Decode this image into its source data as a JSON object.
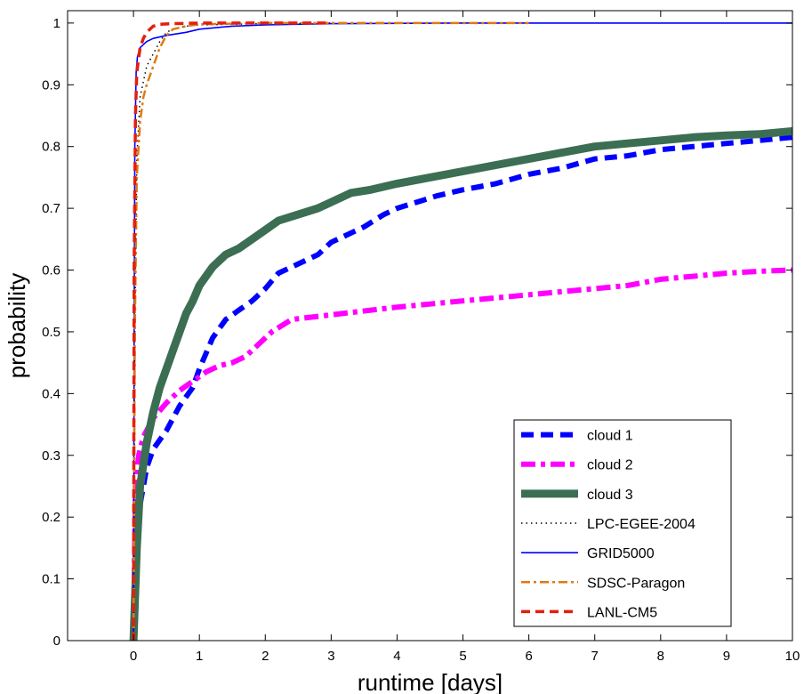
{
  "chart_data": {
    "type": "line",
    "xlabel": "runtime [days]",
    "ylabel": "probability",
    "xlim": [
      -1,
      10
    ],
    "ylim": [
      0,
      1.02
    ],
    "xticks": [
      0,
      1,
      2,
      3,
      4,
      5,
      6,
      7,
      8,
      9,
      10
    ],
    "yticks": [
      0,
      0.1,
      0.2,
      0.3,
      0.4,
      0.5,
      0.6,
      0.7,
      0.8,
      0.9,
      1
    ],
    "grid": false,
    "legend_position": "bottom-right",
    "series": [
      {
        "name": "cloud 1",
        "color": "#0000ff",
        "style": "dashed-thick",
        "x": [
          0,
          0.05,
          0.1,
          0.2,
          0.3,
          0.5,
          0.7,
          0.9,
          1.0,
          1.2,
          1.4,
          1.6,
          1.8,
          2.0,
          2.2,
          2.5,
          2.8,
          3.0,
          3.2,
          3.5,
          3.8,
          4.0,
          4.3,
          4.6,
          5.0,
          5.5,
          6.0,
          6.5,
          7.0,
          7.5,
          8.0,
          8.5,
          9.0,
          9.5,
          10.0
        ],
        "y": [
          0,
          0.15,
          0.22,
          0.28,
          0.31,
          0.34,
          0.38,
          0.41,
          0.44,
          0.49,
          0.52,
          0.535,
          0.55,
          0.57,
          0.595,
          0.61,
          0.625,
          0.645,
          0.655,
          0.67,
          0.69,
          0.7,
          0.71,
          0.72,
          0.73,
          0.74,
          0.755,
          0.765,
          0.78,
          0.785,
          0.795,
          0.8,
          0.805,
          0.81,
          0.815
        ]
      },
      {
        "name": "cloud 2",
        "color": "#ff00ff",
        "style": "dashdot-thick",
        "x": [
          0,
          0.03,
          0.08,
          0.15,
          0.3,
          0.5,
          0.7,
          0.9,
          1.1,
          1.3,
          1.5,
          1.7,
          1.9,
          2.1,
          2.4,
          2.8,
          3.2,
          3.6,
          4.0,
          4.5,
          5.0,
          5.5,
          6.0,
          6.5,
          7.0,
          7.5,
          8.0,
          8.5,
          9.0,
          9.5,
          10.0
        ],
        "y": [
          0,
          0.25,
          0.3,
          0.33,
          0.36,
          0.385,
          0.405,
          0.42,
          0.435,
          0.445,
          0.45,
          0.46,
          0.48,
          0.5,
          0.52,
          0.525,
          0.53,
          0.535,
          0.54,
          0.545,
          0.55,
          0.555,
          0.56,
          0.565,
          0.57,
          0.575,
          0.585,
          0.59,
          0.595,
          0.598,
          0.6
        ]
      },
      {
        "name": "cloud 3",
        "color": "#3b6e52",
        "style": "solid-thick",
        "x": [
          0,
          0.05,
          0.1,
          0.2,
          0.3,
          0.4,
          0.5,
          0.6,
          0.7,
          0.8,
          0.9,
          1.0,
          1.2,
          1.4,
          1.6,
          1.8,
          2.0,
          2.2,
          2.5,
          2.8,
          3.0,
          3.3,
          3.6,
          4.0,
          4.5,
          5.0,
          5.5,
          6.0,
          6.5,
          7.0,
          7.5,
          8.0,
          8.5,
          9.0,
          9.5,
          10.0
        ],
        "y": [
          0,
          0.15,
          0.25,
          0.32,
          0.37,
          0.41,
          0.44,
          0.47,
          0.5,
          0.53,
          0.55,
          0.575,
          0.605,
          0.625,
          0.635,
          0.65,
          0.665,
          0.68,
          0.69,
          0.7,
          0.71,
          0.725,
          0.73,
          0.74,
          0.75,
          0.76,
          0.77,
          0.78,
          0.79,
          0.8,
          0.805,
          0.81,
          0.815,
          0.818,
          0.82,
          0.825
        ]
      },
      {
        "name": "LPC-EGEE-2004",
        "color": "#000000",
        "style": "dotted",
        "x": [
          0,
          0.02,
          0.05,
          0.1,
          0.2,
          0.3,
          0.4,
          0.5,
          0.6,
          0.8,
          1.0,
          1.5,
          2.0,
          3.0
        ],
        "y": [
          0,
          0.5,
          0.78,
          0.88,
          0.93,
          0.95,
          0.97,
          0.985,
          0.99,
          0.995,
          0.997,
          0.998,
          0.999,
          1.0
        ]
      },
      {
        "name": "GRID5000",
        "color": "#0000ff",
        "style": "solid-thin",
        "x": [
          0,
          0.01,
          0.02,
          0.04,
          0.06,
          0.1,
          0.2,
          0.3,
          0.5,
          0.8,
          1.0,
          1.5,
          2.0,
          3.0,
          5.0,
          10.0
        ],
        "y": [
          0,
          0.5,
          0.8,
          0.92,
          0.945,
          0.96,
          0.97,
          0.975,
          0.98,
          0.985,
          0.99,
          0.995,
          0.997,
          0.999,
          1.0,
          1.0
        ]
      },
      {
        "name": "SDSC-Paragon",
        "color": "#e07a10",
        "style": "dashdot",
        "x": [
          0,
          0.02,
          0.05,
          0.1,
          0.15,
          0.2,
          0.3,
          0.4,
          0.5,
          0.6,
          0.8,
          1.0,
          2.0,
          4.0,
          6.0
        ],
        "y": [
          0,
          0.5,
          0.75,
          0.84,
          0.88,
          0.9,
          0.93,
          0.96,
          0.98,
          0.99,
          0.995,
          0.998,
          1.0,
          1.0,
          1.0
        ]
      },
      {
        "name": "LANL-CM5",
        "color": "#e02010",
        "style": "dashed",
        "x": [
          0,
          0.01,
          0.03,
          0.05,
          0.1,
          0.15,
          0.2,
          0.3,
          0.4,
          0.6,
          1.0,
          2.0,
          3.0
        ],
        "y": [
          0,
          0.6,
          0.85,
          0.92,
          0.96,
          0.975,
          0.985,
          0.995,
          0.998,
          0.999,
          1.0,
          1.0,
          1.0
        ]
      }
    ]
  }
}
